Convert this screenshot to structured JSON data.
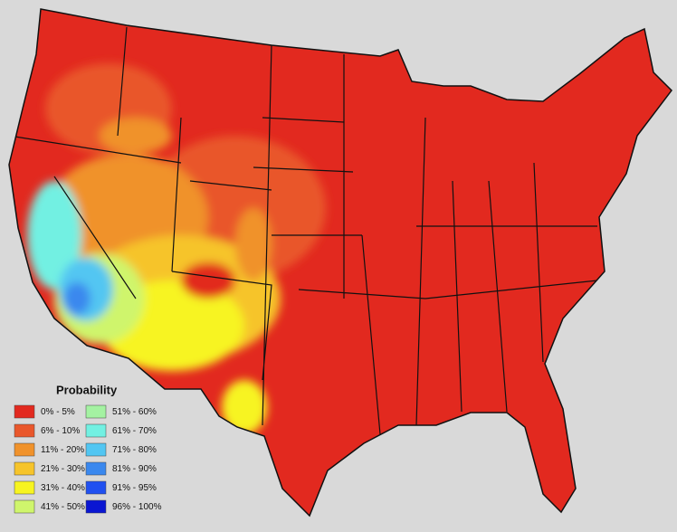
{
  "legend": {
    "title": "Probability",
    "items": [
      {
        "label": "0% - 5%",
        "color": "#e2291f"
      },
      {
        "label": "6% - 10%",
        "color": "#e9572b"
      },
      {
        "label": "11% - 20%",
        "color": "#f0922b"
      },
      {
        "label": "21% - 30%",
        "color": "#f6c42a"
      },
      {
        "label": "31% - 40%",
        "color": "#f7f420"
      },
      {
        "label": "41% - 50%",
        "color": "#cff56c"
      },
      {
        "label": "51% - 60%",
        "color": "#a4f2a2"
      },
      {
        "label": "61% - 70%",
        "color": "#72f0e2"
      },
      {
        "label": "71% - 80%",
        "color": "#52c6f2"
      },
      {
        "label": "81% - 90%",
        "color": "#3a88ee"
      },
      {
        "label": "91% - 95%",
        "color": "#2050f0"
      },
      {
        "label": "96% - 100%",
        "color": "#0a16d2"
      }
    ]
  }
}
